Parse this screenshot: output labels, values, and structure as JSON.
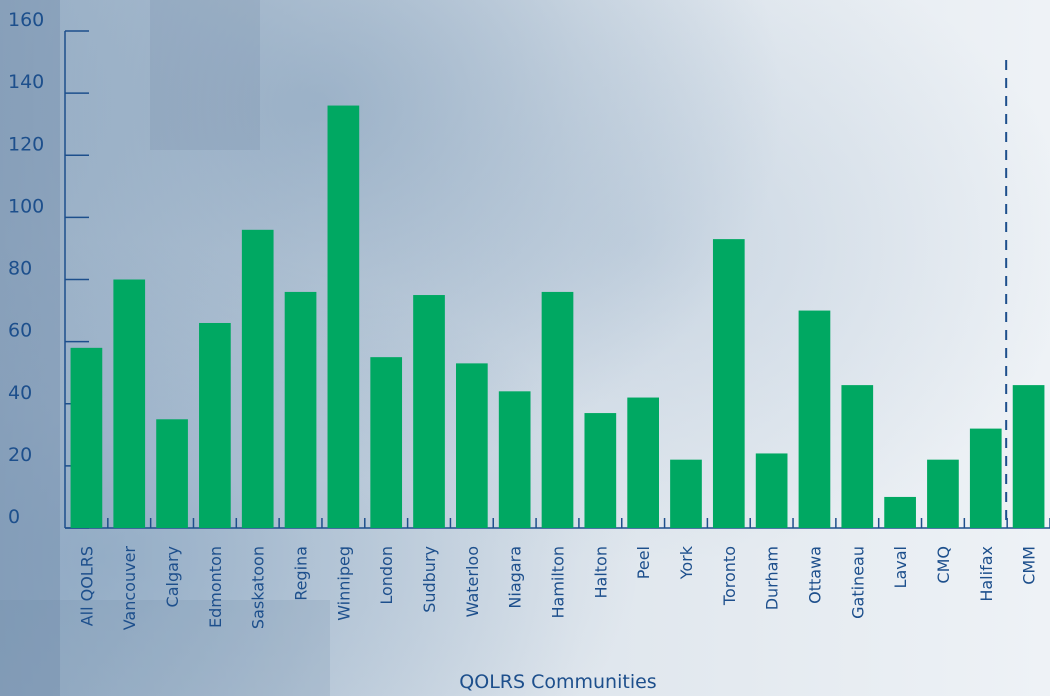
{
  "chart_data": {
    "type": "bar",
    "title": "",
    "xlabel": "QOLRS Communities",
    "ylabel": "",
    "ylim": [
      0,
      160
    ],
    "yticks": [
      0,
      20,
      40,
      60,
      80,
      100,
      120,
      140,
      160
    ],
    "grid": false,
    "categories": [
      "All QOLRS",
      "Vancouver",
      "Calgary",
      "Edmonton",
      "Saskatoon",
      "Regina",
      "Winnipeg",
      "London",
      "Sudbury",
      "Waterloo",
      "Niagara",
      "Hamilton",
      "Halton",
      "Peel",
      "York",
      "Toronto",
      "Durham",
      "Ottawa",
      "Gatineau",
      "Laval",
      "CMQ",
      "Halifax",
      "CMM"
    ],
    "values": [
      58,
      80,
      35,
      66,
      96,
      76,
      136,
      55,
      75,
      53,
      44,
      76,
      37,
      42,
      22,
      93,
      24,
      70,
      46,
      10,
      22,
      32,
      46
    ],
    "separator_after": "Halifax",
    "colors": {
      "bar": "#00a862",
      "axis": "#1d4f8c",
      "text": "#1d4f8c"
    }
  }
}
